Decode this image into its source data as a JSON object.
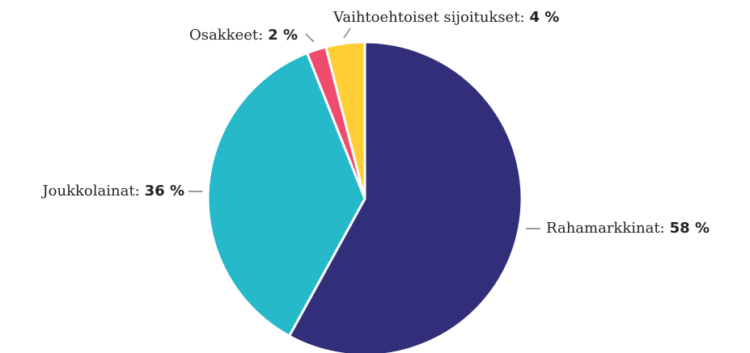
{
  "chart_data": {
    "type": "pie",
    "categories": [
      "Rahamarkkinat:",
      "Joukkolainat:",
      "Osakkeet:",
      "Vaihtoehtoiset sijoitukset:"
    ],
    "values": [
      58,
      36,
      2,
      4
    ],
    "value_labels": [
      "58 %",
      "36 %",
      "2 %",
      "4 %"
    ],
    "colors": [
      "#332e7a",
      "#25b9c9",
      "#ef4b6c",
      "#fece34"
    ]
  }
}
